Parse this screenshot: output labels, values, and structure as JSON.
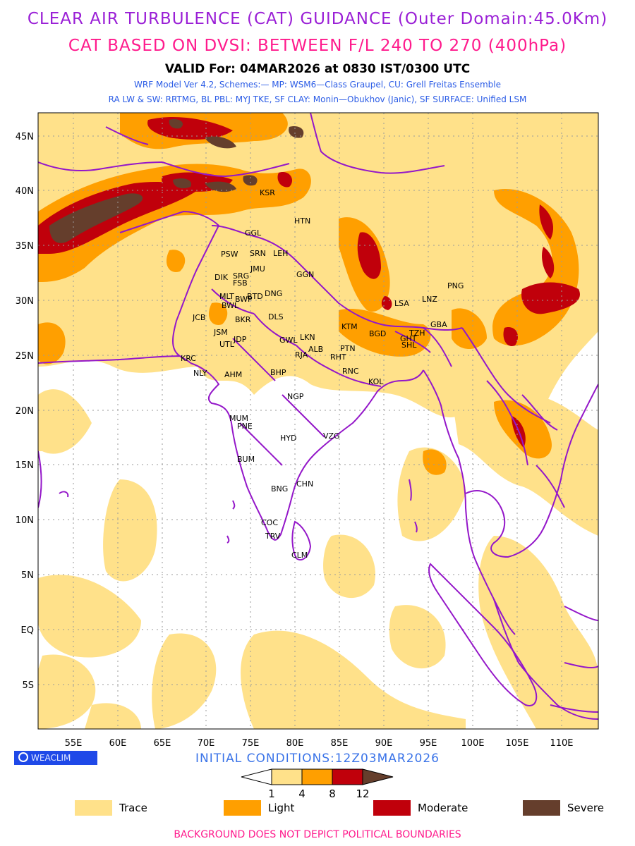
{
  "titles": {
    "main": "CLEAR AIR TURBULENCE (CAT) GUIDANCE (Outer Domain:45.0Km)",
    "sub": "CAT BASED ON DVSI: BETWEEN F/L 240 TO 270 (400hPa)",
    "valid": "VALID For: 04MAR2026 at 0830 IST/0300 UTC",
    "model": "WRF Model Ver 4.2, Schemes:— MP: WSM6—Class Graupel, CU: Grell Freitas Ensemble",
    "physics": "RA LW & SW: RRTMG, BL PBL: MYJ TKE, SF CLAY: Monin—Obukhov (Janic), SF SURFACE: Unified LSM"
  },
  "axes": {
    "lat_labels": [
      "45N",
      "40N",
      "35N",
      "30N",
      "25N",
      "20N",
      "15N",
      "10N",
      "5N",
      "EQ",
      "5S"
    ],
    "lon_labels": [
      "55E",
      "60E",
      "65E",
      "70E",
      "75E",
      "80E",
      "85E",
      "90E",
      "95E",
      "100E",
      "105E",
      "110E"
    ]
  },
  "cities": [
    "KSR",
    "HTN",
    "GGL",
    "PSW",
    "SRN",
    "LEH",
    "DIK",
    "SRG",
    "JMU",
    "GGN",
    "FSB",
    "MLT",
    "BWP",
    "BTD",
    "DNG",
    "BWL",
    "JCB",
    "BKR",
    "DLS",
    "PNG",
    "LSA",
    "LNZ",
    "KTM",
    "BGD",
    "TZH",
    "GBA",
    "GHT",
    "SHL",
    "JSM",
    "LKN",
    "GWL",
    "UTL",
    "JDP",
    "ALB",
    "PTN",
    "RJA",
    "RHT",
    "KRC",
    "NLY",
    "AHM",
    "BHP",
    "RNC",
    "KOL",
    "NGP",
    "MUM",
    "PNE",
    "HYD",
    "VZG",
    "BUM",
    "CHN",
    "BNG",
    "COC",
    "TRV",
    "CLM"
  ],
  "colorbar": {
    "thresholds": [
      "1",
      "4",
      "8",
      "12"
    ]
  },
  "legend": [
    {
      "label": "Trace",
      "color": "#ffe18a"
    },
    {
      "label": "Light",
      "color": "#ff9f00"
    },
    {
      "label": "Moderate",
      "color": "#c0000b"
    },
    {
      "label": "Severe",
      "color": "#653e2c"
    }
  ],
  "logo": "WEACLIM",
  "init": "INITIAL CONDITIONS:12Z03MAR2026",
  "footer": "BACKGROUND DOES NOT DEPICT POLITICAL BOUNDARIES"
}
